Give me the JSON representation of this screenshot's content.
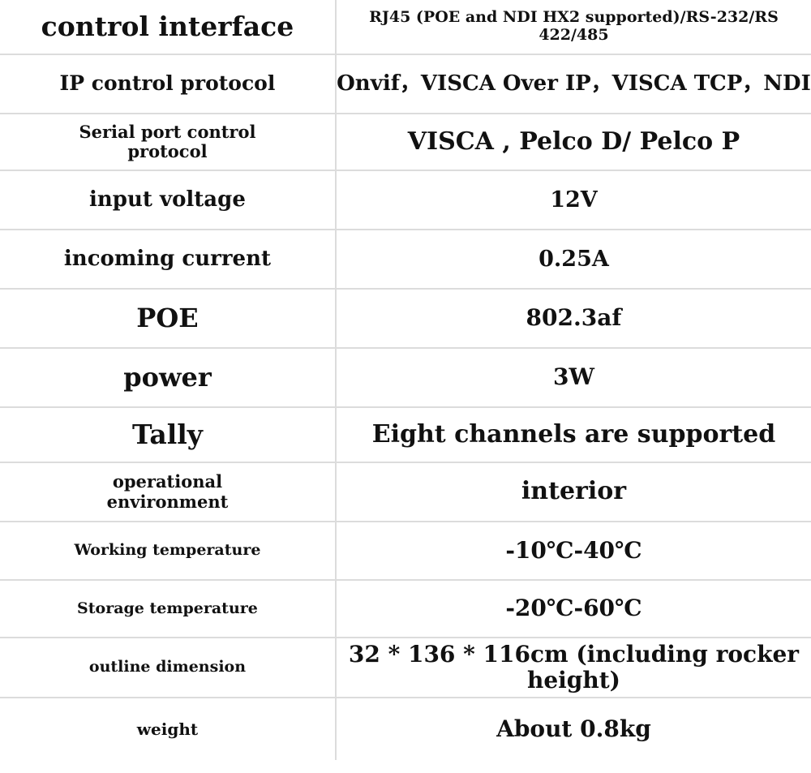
{
  "spec_rows": [
    {
      "label": "control interface",
      "value": "RJ45 (POE and NDI HX2 supported)/RS-232/RS 422/485"
    },
    {
      "label": "IP control protocol",
      "value": "Onvif，VISCA Over IP，VISCA TCP，NDI"
    },
    {
      "label": "Serial port control protocol",
      "value": "VISCA , Pelco D/ Pelco P"
    },
    {
      "label": "input voltage",
      "value": "12V"
    },
    {
      "label": "incoming current",
      "value": "0.25A"
    },
    {
      "label": "POE",
      "value": "802.3af"
    },
    {
      "label": "power",
      "value": "3W"
    },
    {
      "label": "Tally",
      "value": "Eight channels are supported"
    },
    {
      "label": "operational environment",
      "value": "interior"
    },
    {
      "label": "Working temperature",
      "value": "-10℃-40℃"
    },
    {
      "label": "Storage temperature",
      "value": "-20℃-60℃"
    },
    {
      "label": "outline dimension",
      "value": "32 * 136 * 116cm (including rocker height)"
    },
    {
      "label": "weight",
      "value": "About 0.8kg"
    }
  ]
}
